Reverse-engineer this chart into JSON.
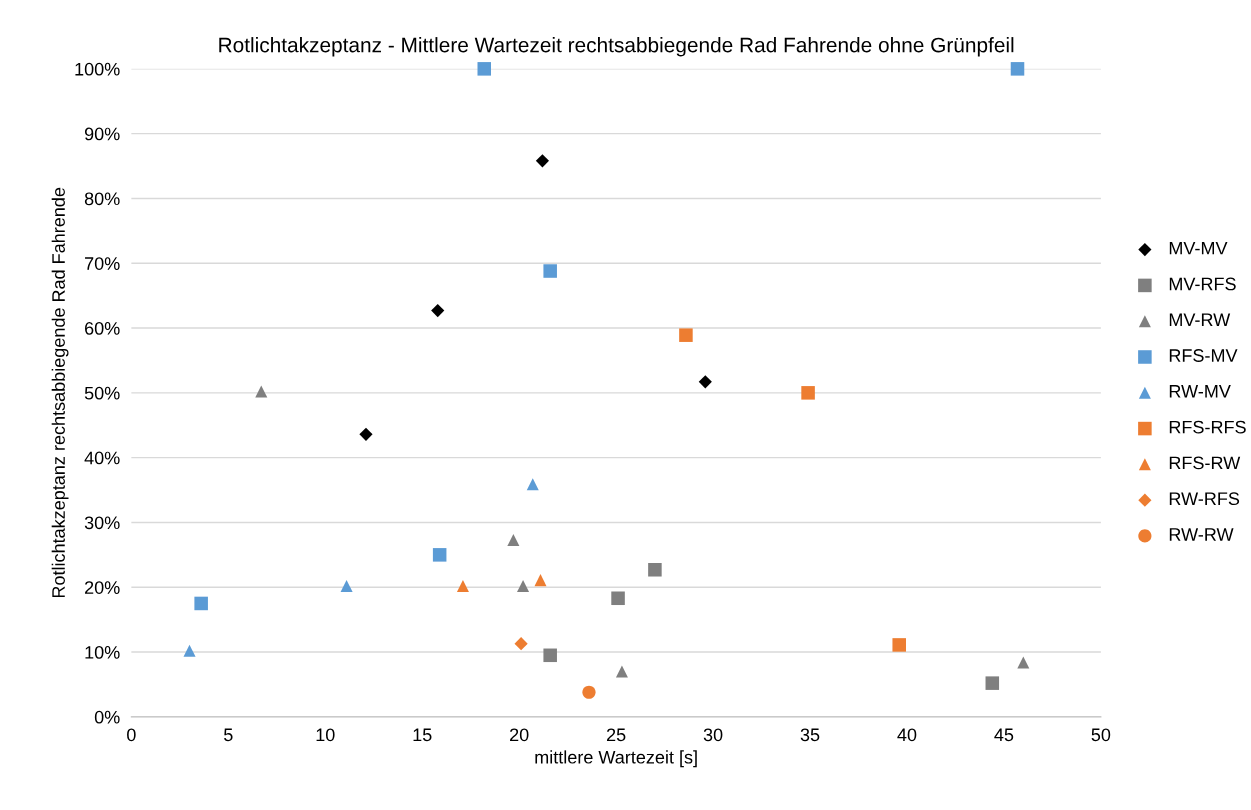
{
  "chart_data": {
    "type": "scatter",
    "title": "Rotlichtakzeptanz - Mittlere Wartezeit rechtsabbiegende Rad Fahrende ohne Grünpfeil",
    "xlabel": "mittlere Wartezeit [s]",
    "ylabel": "Rotlichtakzeptanz rechtsabbiegende Rad Fahrende",
    "xlim": [
      0,
      50
    ],
    "xticks": [
      0,
      5,
      10,
      15,
      20,
      25,
      30,
      35,
      40,
      45,
      50
    ],
    "ylim": [
      0,
      100
    ],
    "yticks": [
      {
        "value": 0,
        "label": "0%"
      },
      {
        "value": 10,
        "label": "10%"
      },
      {
        "value": 20,
        "label": "20%"
      },
      {
        "value": 30,
        "label": "30%"
      },
      {
        "value": 40,
        "label": "40%"
      },
      {
        "value": 50,
        "label": "50%"
      },
      {
        "value": 60,
        "label": "60%"
      },
      {
        "value": 70,
        "label": "70%"
      },
      {
        "value": 80,
        "label": "80%"
      },
      {
        "value": 90,
        "label": "90%"
      },
      {
        "value": 100,
        "label": "100%"
      }
    ],
    "grid": "y",
    "legend": "right",
    "series": [
      {
        "name": "MV-MV",
        "color": "#000000",
        "marker": "diamond",
        "x": [
          12.1,
          15.8,
          21.2,
          29.6
        ],
        "values": [
          43.6,
          62.7,
          85.8,
          51.7
        ]
      },
      {
        "name": "MV-RFS",
        "color": "#7f7f7f",
        "marker": "square",
        "x": [
          21.6,
          25.1,
          27.0,
          44.4
        ],
        "values": [
          9.5,
          18.3,
          22.7,
          5.2
        ]
      },
      {
        "name": "MV-RW",
        "color": "#7f7f7f",
        "marker": "triangle",
        "x": [
          6.7,
          19.7,
          20.2,
          25.3,
          46.0
        ],
        "values": [
          50.2,
          27.3,
          20.2,
          7.0,
          8.4
        ]
      },
      {
        "name": "RFS-MV",
        "color": "#5b9bd5",
        "marker": "square",
        "x": [
          18.2,
          21.6,
          15.9,
          3.6,
          45.7
        ],
        "values": [
          100,
          68.8,
          25.0,
          17.5,
          100
        ]
      },
      {
        "name": "RW-MV",
        "color": "#5b9bd5",
        "marker": "triangle",
        "x": [
          3.0,
          11.1,
          20.7
        ],
        "values": [
          10.2,
          20.2,
          35.9
        ]
      },
      {
        "name": "RFS-RFS",
        "color": "#ed7d31",
        "marker": "square",
        "x": [
          28.6,
          34.9,
          39.6
        ],
        "values": [
          58.9,
          50.0,
          11.1
        ]
      },
      {
        "name": "RFS-RW",
        "color": "#ed7d31",
        "marker": "triangle",
        "x": [
          17.1,
          21.1
        ],
        "values": [
          20.2,
          21.1
        ]
      },
      {
        "name": "RW-RFS",
        "color": "#ed7d31",
        "marker": "diamond",
        "x": [
          20.1
        ],
        "values": [
          11.3
        ]
      },
      {
        "name": "RW-RW",
        "color": "#ed7d31",
        "marker": "circle",
        "x": [
          23.6
        ],
        "values": [
          3.8
        ]
      }
    ]
  }
}
